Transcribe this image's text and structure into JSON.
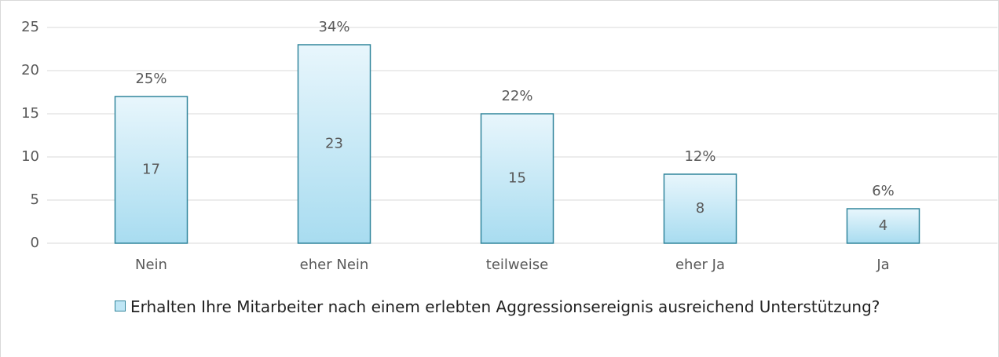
{
  "chart_data": {
    "type": "bar",
    "categories": [
      "Nein",
      "eher Nein",
      "teilweise",
      "eher Ja",
      "Ja"
    ],
    "series": [
      {
        "name": "Erhalten Ihre Mitarbeiter nach einem erlebten Aggressionsereignis ausreichend Unterstützung?",
        "color": "#bfe6f5",
        "values": [
          17,
          23,
          15,
          8,
          4
        ]
      }
    ],
    "percent_labels": [
      "25%",
      "34%",
      "22%",
      "12%",
      "6%"
    ],
    "ylim": [
      0,
      25
    ],
    "yticks": [
      0,
      5,
      10,
      15,
      20,
      25
    ],
    "grid": true,
    "legend": "bottom"
  }
}
